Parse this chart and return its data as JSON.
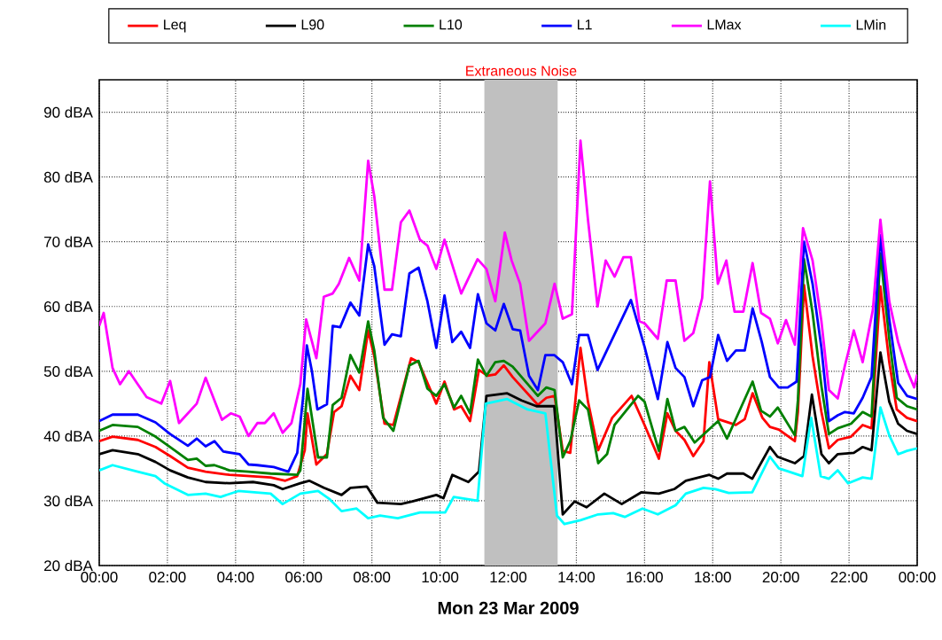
{
  "chart_data": {
    "type": "line",
    "xlabel": "Mon 23 Mar 2009",
    "xlim": [
      0,
      24
    ],
    "ylim": [
      20,
      95
    ],
    "xticks": [
      {
        "value": 0,
        "label": "00:00"
      },
      {
        "value": 2,
        "label": "02:00"
      },
      {
        "value": 4,
        "label": "04:00"
      },
      {
        "value": 6,
        "label": "06:00"
      },
      {
        "value": 8,
        "label": "08:00"
      },
      {
        "value": 10,
        "label": "10:00"
      },
      {
        "value": 12,
        "label": "12:00"
      },
      {
        "value": 14,
        "label": "14:00"
      },
      {
        "value": 16,
        "label": "16:00"
      },
      {
        "value": 18,
        "label": "18:00"
      },
      {
        "value": 20,
        "label": "20:00"
      },
      {
        "value": 22,
        "label": "22:00"
      },
      {
        "value": 24,
        "label": "00:00"
      }
    ],
    "yticks": [
      {
        "value": 20,
        "label": "20 dBA"
      },
      {
        "value": 30,
        "label": "30 dBA"
      },
      {
        "value": 40,
        "label": "40 dBA"
      },
      {
        "value": 50,
        "label": "50 dBA"
      },
      {
        "value": 60,
        "label": "60 dBA"
      },
      {
        "value": 70,
        "label": "70 dBA"
      },
      {
        "value": 80,
        "label": "80 dBA"
      },
      {
        "value": 90,
        "label": "90 dBA"
      }
    ],
    "grid": true,
    "legend": "top",
    "marker": "none",
    "line_style": "solid",
    "bands": [
      {
        "axis": "x",
        "from": 11.3,
        "to": 13.45,
        "label": "Extraneous Noise",
        "color": "#c0c0c0"
      }
    ],
    "series": [
      {
        "name": "Leq",
        "color": "#ff0000",
        "x": [
          0,
          0.39,
          1.13,
          1.65,
          2.08,
          2.6,
          3.12,
          3.82,
          5.03,
          5.46,
          5.81,
          6.03,
          6.11,
          6.37,
          6.68,
          6.89,
          7.11,
          7.37,
          7.63,
          7.89,
          8.07,
          8.37,
          8.63,
          9.15,
          9.37,
          9.89,
          10.13,
          10.41,
          10.62,
          10.88,
          11.14,
          11.39,
          11.62,
          11.87,
          12.13,
          12.87,
          13.12,
          13.36,
          13.6,
          13.82,
          14.12,
          14.34,
          14.64,
          15.05,
          15.62,
          16,
          16.42,
          16.67,
          16.91,
          17.17,
          17.43,
          17.73,
          17.9,
          18.16,
          18.68,
          18.94,
          19.17,
          19.46,
          19.68,
          19.94,
          20.41,
          20.5,
          20.68,
          20.93,
          21.19,
          21.41,
          21.67,
          22.06,
          22.4,
          22.66,
          22.92,
          23.18,
          23.4,
          23.7,
          24
        ],
        "values": [
          39.2,
          39.9,
          39.4,
          38.3,
          36.9,
          35.1,
          34.5,
          34,
          33.6,
          33.1,
          33.8,
          37.8,
          43.5,
          35.6,
          37.2,
          43.7,
          44.6,
          49.3,
          47.1,
          56.3,
          52.3,
          41.9,
          41.7,
          52,
          51.4,
          45,
          48.4,
          44.1,
          44.6,
          42.3,
          50.2,
          49.3,
          49.5,
          50.9,
          49.1,
          44.8,
          45.9,
          46.2,
          37.7,
          37.4,
          53.6,
          45.3,
          37.8,
          42.8,
          46.2,
          41.7,
          36.5,
          43.5,
          40.8,
          39.4,
          36.9,
          39.2,
          51.4,
          42.6,
          41.7,
          42.6,
          46.6,
          42.8,
          41.4,
          41,
          39.2,
          43.7,
          63.3,
          52.3,
          43.7,
          38.1,
          39.4,
          39.9,
          41.7,
          41.2,
          63.1,
          51.4,
          44.1,
          42.8,
          42.3
        ]
      },
      {
        "name": "L90",
        "color": "#000000",
        "x": [
          0,
          0.39,
          1.13,
          1.65,
          2.08,
          2.6,
          3.12,
          3.82,
          4.51,
          5.12,
          5.38,
          5.9,
          6.16,
          6.59,
          7.11,
          7.37,
          7.85,
          8.16,
          8.85,
          9.19,
          9.89,
          10.1,
          10.36,
          10.83,
          11.14,
          11.36,
          11.97,
          12.39,
          12.83,
          13.35,
          13.6,
          13.95,
          14.3,
          14.82,
          15.33,
          15.9,
          16.42,
          16.87,
          17.21,
          17.9,
          18.16,
          18.42,
          18.9,
          19.16,
          19.68,
          19.9,
          20.41,
          20.68,
          20.91,
          21.19,
          21.41,
          21.67,
          22.14,
          22.4,
          22.66,
          22.92,
          23.18,
          23.44,
          23.7,
          24
        ],
        "values": [
          37.2,
          37.8,
          37.2,
          36,
          34.7,
          33.6,
          32.9,
          32.7,
          32.9,
          32.4,
          31.8,
          32.7,
          33.1,
          32,
          30.9,
          32,
          32.2,
          29.7,
          29.5,
          29.9,
          30.9,
          30.4,
          34,
          32.9,
          34.5,
          46.2,
          46.6,
          45.5,
          44.6,
          44.6,
          27.9,
          29.9,
          29,
          31.1,
          29.5,
          31.3,
          31.1,
          31.8,
          33.1,
          34,
          33.4,
          34.2,
          34.2,
          33.4,
          38.3,
          36.8,
          35.8,
          36.9,
          46.4,
          37.2,
          35.8,
          37.2,
          37.4,
          38.3,
          37.8,
          52.9,
          45.3,
          41.9,
          40.8,
          40.3
        ]
      },
      {
        "name": "L10",
        "color": "#008000",
        "x": [
          0,
          0.39,
          1.13,
          1.65,
          2.08,
          2.6,
          2.86,
          3.12,
          3.38,
          3.82,
          4.38,
          5.03,
          5.81,
          5.9,
          6.03,
          6.11,
          6.42,
          6.68,
          6.85,
          7.11,
          7.37,
          7.63,
          7.89,
          8.07,
          8.33,
          8.63,
          9.1,
          9.37,
          9.63,
          9.89,
          10.13,
          10.41,
          10.62,
          10.88,
          11.11,
          11.36,
          11.62,
          11.87,
          12.13,
          12.87,
          13.12,
          13.36,
          13.6,
          13.82,
          14.08,
          14.34,
          14.64,
          14.9,
          15.12,
          15.81,
          16,
          16.42,
          16.67,
          16.91,
          17.17,
          17.47,
          18.16,
          18.42,
          19.17,
          19.42,
          19.68,
          19.91,
          20.41,
          20.5,
          20.68,
          20.93,
          21.19,
          21.41,
          21.67,
          22.06,
          22.4,
          22.66,
          22.92,
          23.18,
          23.4,
          23.7,
          24
        ],
        "values": [
          40.8,
          41.7,
          41.4,
          39.9,
          38.3,
          36.3,
          36.5,
          35.4,
          35.5,
          34.7,
          34.5,
          34.2,
          34,
          34.7,
          42.3,
          47.3,
          36.7,
          36.7,
          44.8,
          45.9,
          52.5,
          49.8,
          57.7,
          53.2,
          42.8,
          40.8,
          50.9,
          51.6,
          47.3,
          46.2,
          48,
          44.4,
          46.2,
          43.5,
          51.8,
          49.3,
          51.4,
          51.6,
          50.7,
          46.2,
          47.5,
          47.1,
          36.7,
          39.2,
          45.5,
          44.1,
          35.8,
          37.2,
          41.7,
          46.2,
          45.3,
          37.7,
          45.7,
          40.8,
          41.4,
          39,
          42.3,
          39.6,
          48.4,
          43.9,
          43,
          44.4,
          40.1,
          45.5,
          67.3,
          59,
          47.7,
          40.3,
          41.2,
          41.9,
          43.7,
          43,
          68.2,
          55,
          45.9,
          44.6,
          44.1
        ]
      },
      {
        "name": "L1",
        "color": "#0000ff",
        "x": [
          0,
          0.39,
          1.13,
          1.65,
          2.08,
          2.6,
          2.86,
          3.12,
          3.38,
          3.64,
          4.12,
          4.38,
          4.64,
          5.12,
          5.55,
          5.81,
          5.98,
          6.09,
          6.24,
          6.4,
          6.68,
          6.85,
          7.07,
          7.37,
          7.63,
          7.89,
          8.07,
          8.37,
          8.59,
          8.85,
          9.1,
          9.37,
          9.63,
          9.89,
          10.13,
          10.36,
          10.62,
          10.88,
          11.11,
          11.36,
          11.62,
          11.87,
          12.13,
          12.35,
          12.61,
          12.87,
          13.09,
          13.35,
          13.6,
          13.87,
          14.08,
          14.34,
          14.62,
          15.6,
          16,
          16.39,
          16.67,
          16.91,
          17.17,
          17.43,
          17.69,
          17.92,
          18.16,
          18.42,
          18.68,
          18.94,
          19.17,
          19.44,
          19.68,
          19.94,
          20.2,
          20.46,
          20.68,
          20.93,
          21.19,
          21.41,
          21.67,
          21.88,
          22.14,
          22.4,
          22.66,
          22.92,
          23.18,
          23.44,
          23.7,
          24
        ],
        "values": [
          42.3,
          43.3,
          43.3,
          42.1,
          40.3,
          38.5,
          39.6,
          38.4,
          39.2,
          37.6,
          37.2,
          35.6,
          35.5,
          35.2,
          34.5,
          37.4,
          45.9,
          54,
          50,
          44.1,
          44.9,
          57,
          56.8,
          60.6,
          58.6,
          69.6,
          66.2,
          54.1,
          55.7,
          55.4,
          65.1,
          66,
          60.8,
          53.6,
          61.7,
          54.5,
          56.1,
          53.6,
          61.9,
          57.4,
          56.3,
          60.4,
          56.5,
          56.3,
          49.3,
          47.1,
          52.5,
          52.5,
          51.4,
          48,
          55.6,
          55.6,
          50.2,
          61,
          53.8,
          45.7,
          54.5,
          50.5,
          49.1,
          44.6,
          48.6,
          49.1,
          55.6,
          51.6,
          53.2,
          53.2,
          59.7,
          54.5,
          49.1,
          47.5,
          47.5,
          48.4,
          70,
          63.5,
          53.6,
          42.3,
          43.2,
          43.7,
          43.5,
          45.9,
          49.1,
          71,
          58.1,
          48.2,
          46.2,
          45.7
        ]
      },
      {
        "name": "LMax",
        "color": "#ff00ff",
        "x": [
          0,
          0.13,
          0.39,
          0.61,
          0.87,
          1.13,
          1.39,
          1.82,
          2.08,
          2.34,
          2.86,
          3.12,
          3.6,
          3.86,
          4.12,
          4.38,
          4.64,
          4.86,
          5.12,
          5.38,
          5.64,
          5.9,
          6.07,
          6.37,
          6.59,
          6.85,
          7.03,
          7.33,
          7.63,
          7.89,
          8.07,
          8.37,
          8.59,
          8.85,
          9.1,
          9.41,
          9.63,
          9.89,
          10.13,
          10.62,
          11.1,
          11.36,
          11.62,
          11.9,
          12.1,
          12.35,
          12.61,
          13.09,
          13.36,
          13.6,
          13.87,
          14.12,
          14.34,
          14.62,
          14.86,
          15.12,
          15.38,
          15.6,
          15.85,
          16,
          16.39,
          16.65,
          16.91,
          17.17,
          17.43,
          17.69,
          17.92,
          18.15,
          18.4,
          18.64,
          18.9,
          19.17,
          19.42,
          19.68,
          19.91,
          20.15,
          20.41,
          20.65,
          20.93,
          21.19,
          21.41,
          21.67,
          21.88,
          22.14,
          22.4,
          22.7,
          22.92,
          23.18,
          23.44,
          23.7,
          23.91,
          24
        ],
        "values": [
          57,
          59,
          50.5,
          48,
          50,
          48,
          46,
          45,
          48.5,
          42,
          45,
          49,
          42.5,
          43.5,
          43,
          40,
          42,
          42,
          43.5,
          40.5,
          42,
          48,
          58,
          52,
          61.5,
          62,
          63.5,
          67.5,
          64,
          82.5,
          77,
          62.6,
          62.6,
          73,
          74.8,
          70.3,
          69.4,
          65.8,
          70.3,
          62,
          67.3,
          65.8,
          60.8,
          71.4,
          67.1,
          63.5,
          54.7,
          57.4,
          63.5,
          58.1,
          58.8,
          85.6,
          73.4,
          60,
          67.1,
          64.6,
          67.6,
          67.6,
          57.7,
          57.4,
          55,
          64,
          64,
          54.7,
          55.9,
          61.3,
          79.3,
          63.5,
          67.1,
          59.2,
          59.2,
          66.7,
          59,
          58.1,
          54.3,
          57.9,
          54.1,
          72.1,
          67.1,
          57.7,
          47.1,
          45.8,
          50.9,
          56.3,
          51.4,
          59.5,
          73.4,
          60.8,
          54.5,
          50.2,
          47.5,
          49.5
        ]
      },
      {
        "name": "LMin",
        "color": "#00ffff",
        "x": [
          0,
          0.39,
          1.13,
          1.65,
          1.91,
          2.6,
          3.12,
          3.56,
          4.08,
          5.03,
          5.38,
          5.9,
          6.42,
          6.77,
          7.11,
          7.55,
          7.89,
          8.24,
          8.76,
          9.41,
          10.15,
          10.4,
          11.1,
          11.34,
          11.97,
          12.57,
          13.09,
          13.43,
          13.65,
          14.12,
          14.64,
          15.08,
          15.42,
          15.94,
          16.39,
          16.91,
          17.21,
          17.73,
          18.08,
          18.47,
          19.16,
          19.68,
          19.94,
          20.24,
          20.63,
          20.89,
          21.17,
          21.41,
          21.67,
          21.97,
          22.4,
          22.66,
          22.92,
          23.18,
          23.44,
          23.7,
          24
        ],
        "values": [
          34.7,
          35.5,
          34.5,
          33.8,
          32.7,
          30.9,
          31.1,
          30.6,
          31.5,
          31.1,
          29.5,
          31.1,
          31.5,
          30.2,
          28.4,
          28.8,
          27.3,
          27.7,
          27.3,
          28.2,
          28.2,
          30.6,
          30,
          45,
          45.7,
          44.1,
          43.5,
          27.7,
          26.4,
          27,
          27.9,
          28.1,
          27.5,
          28.8,
          27.9,
          29.3,
          31.1,
          32,
          31.8,
          31.2,
          31.3,
          36.8,
          35,
          34.5,
          33.8,
          42.8,
          33.8,
          33.4,
          34.7,
          32.7,
          33.6,
          33.4,
          44.4,
          40.1,
          37.2,
          37.7,
          38.1
        ]
      }
    ]
  }
}
